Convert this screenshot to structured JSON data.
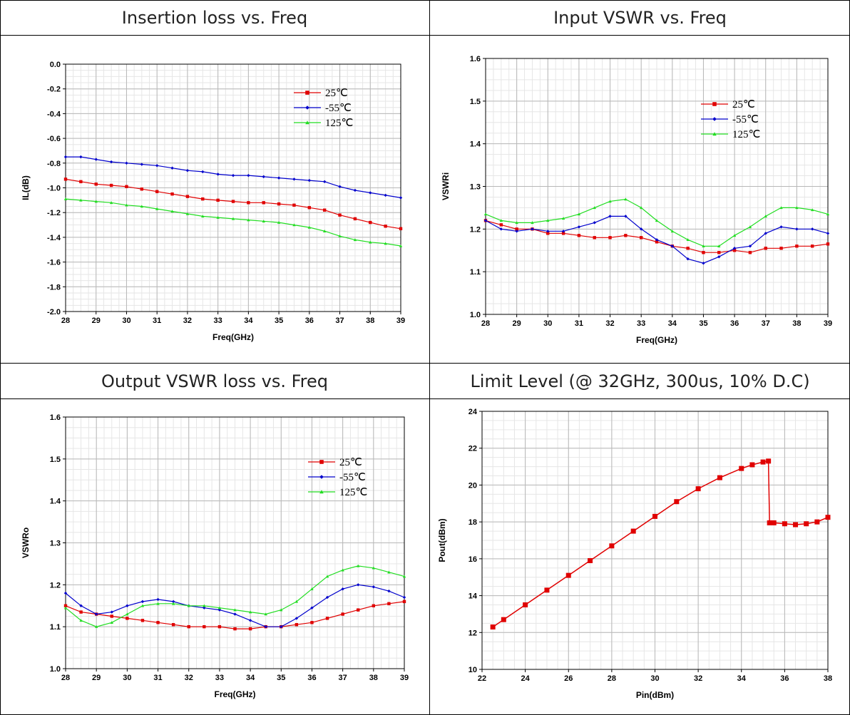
{
  "panels": [
    {
      "title": "Insertion loss vs. Freq"
    },
    {
      "title": "Input VSWR vs. Freq"
    },
    {
      "title": "Output VSWR loss vs. Freq"
    },
    {
      "title": "Limit Level (@ 32GHz, 300us, 10% D.C)"
    }
  ],
  "chart_data": [
    {
      "type": "line",
      "title": "Insertion loss vs. Freq",
      "xlabel": "Freq(GHz)",
      "ylabel": "IL(dB)",
      "xlim": [
        28,
        39
      ],
      "ylim": [
        -2.0,
        0.0
      ],
      "xticks": [
        28,
        29,
        30,
        31,
        32,
        33,
        34,
        35,
        36,
        37,
        38,
        39
      ],
      "yticks": [
        0.0,
        -0.2,
        -0.4,
        -0.6,
        -0.8,
        -1.0,
        -1.2,
        -1.4,
        -1.6,
        -1.8,
        -2.0
      ],
      "ytick_labels": [
        "0.0",
        "-0.2",
        "-0.4",
        "-0.6",
        "-0.8",
        "-1.0",
        "-1.2",
        "-1.4",
        "-1.6",
        "-1.8",
        "-2.0"
      ],
      "grid": true,
      "legend": "top-right",
      "x": [
        28,
        28.5,
        29,
        29.5,
        30,
        30.5,
        31,
        31.5,
        32,
        32.5,
        33,
        33.5,
        34,
        34.5,
        35,
        35.5,
        36,
        36.5,
        37,
        37.5,
        38,
        38.5,
        39
      ],
      "series": [
        {
          "name": "25℃",
          "color": "#e00000",
          "marker": "square",
          "values": [
            -0.93,
            -0.95,
            -0.97,
            -0.98,
            -0.99,
            -1.01,
            -1.03,
            -1.05,
            -1.07,
            -1.09,
            -1.1,
            -1.11,
            -1.12,
            -1.12,
            -1.13,
            -1.14,
            -1.16,
            -1.18,
            -1.22,
            -1.25,
            -1.28,
            -1.31,
            -1.33
          ]
        },
        {
          "name": "-55℃",
          "color": "#0000cc",
          "marker": "diamond",
          "values": [
            -0.75,
            -0.75,
            -0.77,
            -0.79,
            -0.8,
            -0.81,
            -0.82,
            -0.84,
            -0.86,
            -0.87,
            -0.89,
            -0.9,
            -0.9,
            -0.91,
            -0.92,
            -0.93,
            -0.94,
            -0.95,
            -0.99,
            -1.02,
            -1.04,
            -1.06,
            -1.08
          ]
        },
        {
          "name": "125℃",
          "color": "#22dd22",
          "marker": "triangle",
          "values": [
            -1.09,
            -1.1,
            -1.11,
            -1.12,
            -1.14,
            -1.15,
            -1.17,
            -1.19,
            -1.21,
            -1.23,
            -1.24,
            -1.25,
            -1.26,
            -1.27,
            -1.28,
            -1.3,
            -1.32,
            -1.35,
            -1.39,
            -1.42,
            -1.44,
            -1.45,
            -1.47
          ]
        }
      ]
    },
    {
      "type": "line",
      "title": "Input VSWR vs. Freq",
      "xlabel": "Freq(GHz)",
      "ylabel": "VSWRi",
      "xlim": [
        28,
        39
      ],
      "ylim": [
        1.0,
        1.6
      ],
      "xticks": [
        28,
        29,
        30,
        31,
        32,
        33,
        34,
        35,
        36,
        37,
        38,
        39
      ],
      "yticks": [
        1.0,
        1.1,
        1.2,
        1.3,
        1.4,
        1.5,
        1.6
      ],
      "ytick_labels": [
        "1.0",
        "1.1",
        "1.2",
        "1.3",
        "1.4",
        "1.5",
        "1.6"
      ],
      "grid": true,
      "legend": "top-right",
      "x": [
        28,
        28.5,
        29,
        29.5,
        30,
        30.5,
        31,
        31.5,
        32,
        32.5,
        33,
        33.5,
        34,
        34.5,
        35,
        35.5,
        36,
        36.5,
        37,
        37.5,
        38,
        38.5,
        39
      ],
      "series": [
        {
          "name": "25℃",
          "color": "#e00000",
          "marker": "square",
          "values": [
            1.22,
            1.21,
            1.2,
            1.2,
            1.19,
            1.19,
            1.185,
            1.18,
            1.18,
            1.185,
            1.18,
            1.17,
            1.16,
            1.155,
            1.145,
            1.145,
            1.15,
            1.145,
            1.155,
            1.155,
            1.16,
            1.16,
            1.165
          ]
        },
        {
          "name": "-55℃",
          "color": "#0000cc",
          "marker": "diamond",
          "values": [
            1.22,
            1.2,
            1.195,
            1.2,
            1.195,
            1.195,
            1.205,
            1.215,
            1.23,
            1.23,
            1.2,
            1.175,
            1.16,
            1.13,
            1.12,
            1.135,
            1.155,
            1.16,
            1.19,
            1.205,
            1.2,
            1.2,
            1.19
          ]
        },
        {
          "name": "125℃",
          "color": "#22dd22",
          "marker": "triangle",
          "values": [
            1.235,
            1.22,
            1.215,
            1.215,
            1.22,
            1.225,
            1.235,
            1.25,
            1.265,
            1.27,
            1.25,
            1.22,
            1.195,
            1.175,
            1.16,
            1.16,
            1.185,
            1.205,
            1.23,
            1.25,
            1.25,
            1.245,
            1.235
          ]
        }
      ]
    },
    {
      "type": "line",
      "title": "Output VSWR loss vs. Freq",
      "xlabel": "Freq(GHz)",
      "ylabel": "VSWRo",
      "xlim": [
        28,
        39
      ],
      "ylim": [
        1.0,
        1.6
      ],
      "xticks": [
        28,
        29,
        30,
        31,
        32,
        33,
        34,
        35,
        36,
        37,
        38,
        39
      ],
      "yticks": [
        1.0,
        1.1,
        1.2,
        1.3,
        1.4,
        1.5,
        1.6
      ],
      "ytick_labels": [
        "1.0",
        "1.1",
        "1.2",
        "1.3",
        "1.4",
        "1.5",
        "1.6"
      ],
      "grid": true,
      "legend": "top-right",
      "x": [
        28,
        28.5,
        29,
        29.5,
        30,
        30.5,
        31,
        31.5,
        32,
        32.5,
        33,
        33.5,
        34,
        34.5,
        35,
        35.5,
        36,
        36.5,
        37,
        37.5,
        38,
        38.5,
        39
      ],
      "series": [
        {
          "name": "25℃",
          "color": "#e00000",
          "marker": "square",
          "values": [
            1.15,
            1.135,
            1.13,
            1.125,
            1.12,
            1.115,
            1.11,
            1.105,
            1.1,
            1.1,
            1.1,
            1.095,
            1.095,
            1.1,
            1.1,
            1.105,
            1.11,
            1.12,
            1.13,
            1.14,
            1.15,
            1.155,
            1.16
          ]
        },
        {
          "name": "-55℃",
          "color": "#0000cc",
          "marker": "diamond",
          "values": [
            1.18,
            1.15,
            1.13,
            1.135,
            1.15,
            1.16,
            1.165,
            1.16,
            1.15,
            1.145,
            1.14,
            1.13,
            1.115,
            1.1,
            1.1,
            1.12,
            1.145,
            1.17,
            1.19,
            1.2,
            1.195,
            1.185,
            1.17
          ]
        },
        {
          "name": "125℃",
          "color": "#22dd22",
          "marker": "triangle",
          "values": [
            1.145,
            1.115,
            1.1,
            1.11,
            1.13,
            1.15,
            1.155,
            1.155,
            1.15,
            1.15,
            1.145,
            1.14,
            1.135,
            1.13,
            1.14,
            1.16,
            1.19,
            1.22,
            1.235,
            1.245,
            1.24,
            1.23,
            1.22
          ]
        }
      ]
    },
    {
      "type": "line",
      "title": "Limit Level (@ 32GHz, 300us, 10% D.C)",
      "xlabel": "Pin(dBm)",
      "ylabel": "Pout(dBm)",
      "xlim": [
        22,
        38
      ],
      "ylim": [
        10,
        24
      ],
      "xticks": [
        22,
        24,
        26,
        28,
        30,
        32,
        34,
        36,
        38
      ],
      "yticks": [
        10,
        12,
        14,
        16,
        18,
        20,
        22,
        24
      ],
      "ytick_labels": [
        "10",
        "12",
        "14",
        "16",
        "18",
        "20",
        "22",
        "24"
      ],
      "grid": true,
      "x": [
        22.5,
        23,
        24,
        25,
        26,
        27,
        28,
        29,
        30,
        31,
        32,
        33,
        34,
        34.5,
        35,
        35.25,
        35.3,
        35.5,
        36,
        36.5,
        37,
        37.5,
        38
      ],
      "series": [
        {
          "name": "",
          "color": "#e00000",
          "marker": "square",
          "values": [
            12.3,
            12.7,
            13.5,
            14.3,
            15.1,
            15.9,
            16.7,
            17.5,
            18.3,
            19.1,
            19.8,
            20.4,
            20.9,
            21.1,
            21.25,
            21.3,
            17.95,
            17.95,
            17.9,
            17.85,
            17.9,
            18.0,
            18.25
          ]
        }
      ]
    }
  ]
}
